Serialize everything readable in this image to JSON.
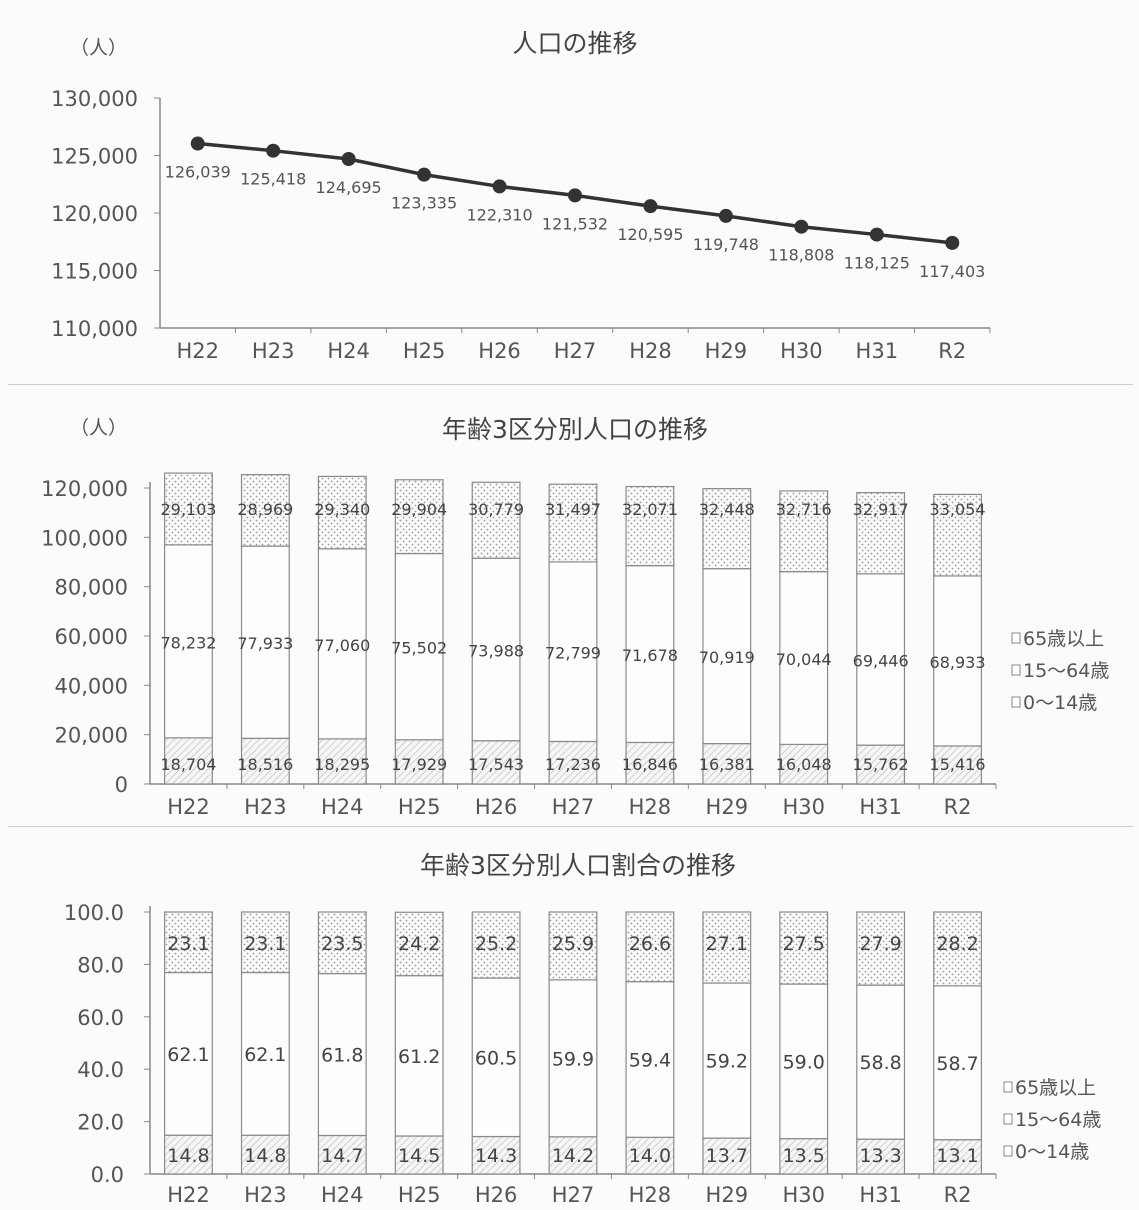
{
  "chart_data": [
    {
      "type": "line",
      "title": "人口の推移",
      "unit_label": "（人）",
      "categories": [
        "H22",
        "H23",
        "H24",
        "H25",
        "H26",
        "H27",
        "H28",
        "H29",
        "H30",
        "H31",
        "R2"
      ],
      "values": [
        126039,
        125418,
        124695,
        123335,
        122310,
        121532,
        120595,
        119748,
        118808,
        118125,
        117403
      ],
      "data_labels": [
        "126,039",
        "125,418",
        "124,695",
        "123,335",
        "122,310",
        "121,532",
        "120,595",
        "119,748",
        "118,808",
        "118,125",
        "117,403"
      ],
      "ylim": [
        110000,
        130000
      ],
      "yticks": [
        "110,000",
        "115,000",
        "120,000",
        "125,000",
        "130,000"
      ],
      "grid": false,
      "color": "#333333"
    },
    {
      "type": "bar",
      "stacked": true,
      "title": "年齢3区分別人口の推移",
      "unit_label": "（人）",
      "categories": [
        "H22",
        "H23",
        "H24",
        "H25",
        "H26",
        "H27",
        "H28",
        "H29",
        "H30",
        "H31",
        "R2"
      ],
      "series": [
        {
          "name": "0～14歳",
          "values": [
            18704,
            18516,
            18295,
            17929,
            17543,
            17236,
            16846,
            16381,
            16048,
            15762,
            15416
          ],
          "labels": [
            "18,704",
            "18,516",
            "18,295",
            "17,929",
            "17,543",
            "17,236",
            "16,846",
            "16,381",
            "16,048",
            "15,762",
            "15,416"
          ]
        },
        {
          "name": "15～64歳",
          "values": [
            78232,
            77933,
            77060,
            75502,
            73988,
            72799,
            71678,
            70919,
            70044,
            69446,
            68933
          ],
          "labels": [
            "78,232",
            "77,933",
            "77,060",
            "75,502",
            "73,988",
            "72,799",
            "71,678",
            "70,919",
            "70,044",
            "69,446",
            "68,933"
          ]
        },
        {
          "name": "65歳以上",
          "values": [
            29103,
            28969,
            29340,
            29904,
            30779,
            31497,
            32071,
            32448,
            32716,
            32917,
            33054
          ],
          "labels": [
            "29,103",
            "28,969",
            "29,340",
            "29,904",
            "30,779",
            "31,497",
            "32,071",
            "32,448",
            "32,716",
            "32,917",
            "33,054"
          ]
        }
      ],
      "legend": [
        "65歳以上",
        "15～64歳",
        "0～14歳"
      ],
      "legend_position": "right",
      "ylim": [
        0,
        120000
      ],
      "yticks": [
        "0",
        "20,000",
        "40,000",
        "60,000",
        "80,000",
        "100,000",
        "120,000"
      ],
      "grid": false
    },
    {
      "type": "bar",
      "stacked": true,
      "title": "年齢3区分別人口割合の推移",
      "categories": [
        "H22",
        "H23",
        "H24",
        "H25",
        "H26",
        "H27",
        "H28",
        "H29",
        "H30",
        "H31",
        "R2"
      ],
      "series": [
        {
          "name": "0～14歳",
          "values": [
            14.8,
            14.8,
            14.7,
            14.5,
            14.3,
            14.2,
            14.0,
            13.7,
            13.5,
            13.3,
            13.1
          ],
          "labels": [
            "14.8",
            "14.8",
            "14.7",
            "14.5",
            "14.3",
            "14.2",
            "14.0",
            "13.7",
            "13.5",
            "13.3",
            "13.1"
          ]
        },
        {
          "name": "15～64歳",
          "values": [
            62.1,
            62.1,
            61.8,
            61.2,
            60.5,
            59.9,
            59.4,
            59.2,
            59.0,
            58.8,
            58.7
          ],
          "labels": [
            "62.1",
            "62.1",
            "61.8",
            "61.2",
            "60.5",
            "59.9",
            "59.4",
            "59.2",
            "59.0",
            "58.8",
            "58.7"
          ]
        },
        {
          "name": "65歳以上",
          "values": [
            23.1,
            23.1,
            23.5,
            24.2,
            25.2,
            25.9,
            26.6,
            27.1,
            27.5,
            27.9,
            28.2
          ],
          "labels": [
            "23.1",
            "23.1",
            "23.5",
            "24.2",
            "25.2",
            "25.9",
            "26.6",
            "27.1",
            "27.5",
            "27.9",
            "28.2"
          ]
        }
      ],
      "legend": [
        "65歳以上",
        "15～64歳",
        "0～14歳"
      ],
      "legend_position": "right",
      "ylim": [
        0,
        100
      ],
      "yticks": [
        "0.0",
        "20.0",
        "40.0",
        "60.0",
        "80.0",
        "100.0"
      ],
      "grid": false
    }
  ]
}
